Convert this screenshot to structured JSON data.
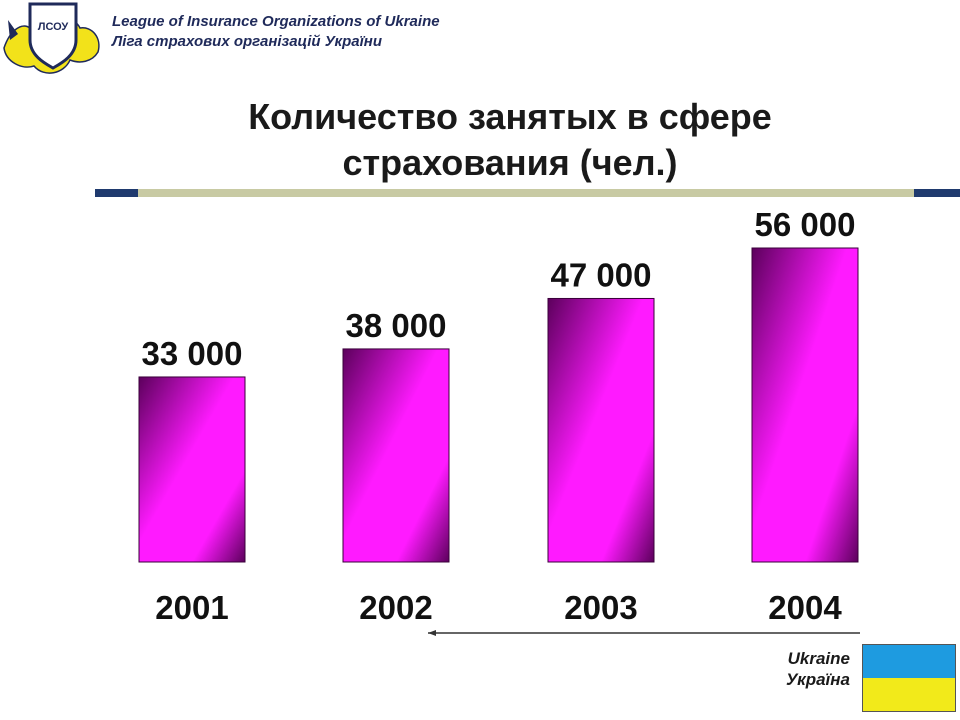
{
  "header": {
    "org_en": "League of  Insurance Organizations of Ukraine",
    "org_uk": "Ліга страхових організацій України",
    "logo_text": "ЛСОУ"
  },
  "title": {
    "line1": "Количество занятых в сфере",
    "line2": "страхования (чел.)"
  },
  "footer": {
    "country_en": "Ukraine",
    "country_uk": "Україна"
  },
  "colors": {
    "bar_light": "#ff1aff",
    "bar_dark": "#5c005c",
    "rule_accent": "#1f3a6e",
    "rule_main": "#c8caa3",
    "flag_blue": "#1e9be0",
    "flag_yellow": "#f2ea1a"
  },
  "chart_data": {
    "type": "bar",
    "title": "Количество занятых в сфере страхования (чел.)",
    "categories": [
      "2001",
      "2002",
      "2003",
      "2004"
    ],
    "values": [
      33000,
      38000,
      47000,
      56000
    ],
    "value_labels": [
      "33 000",
      "38 000",
      "47 000",
      "56 000"
    ],
    "xlabel": "",
    "ylabel": "",
    "ylim": [
      0,
      56000
    ],
    "grid": false,
    "legend": "none"
  }
}
